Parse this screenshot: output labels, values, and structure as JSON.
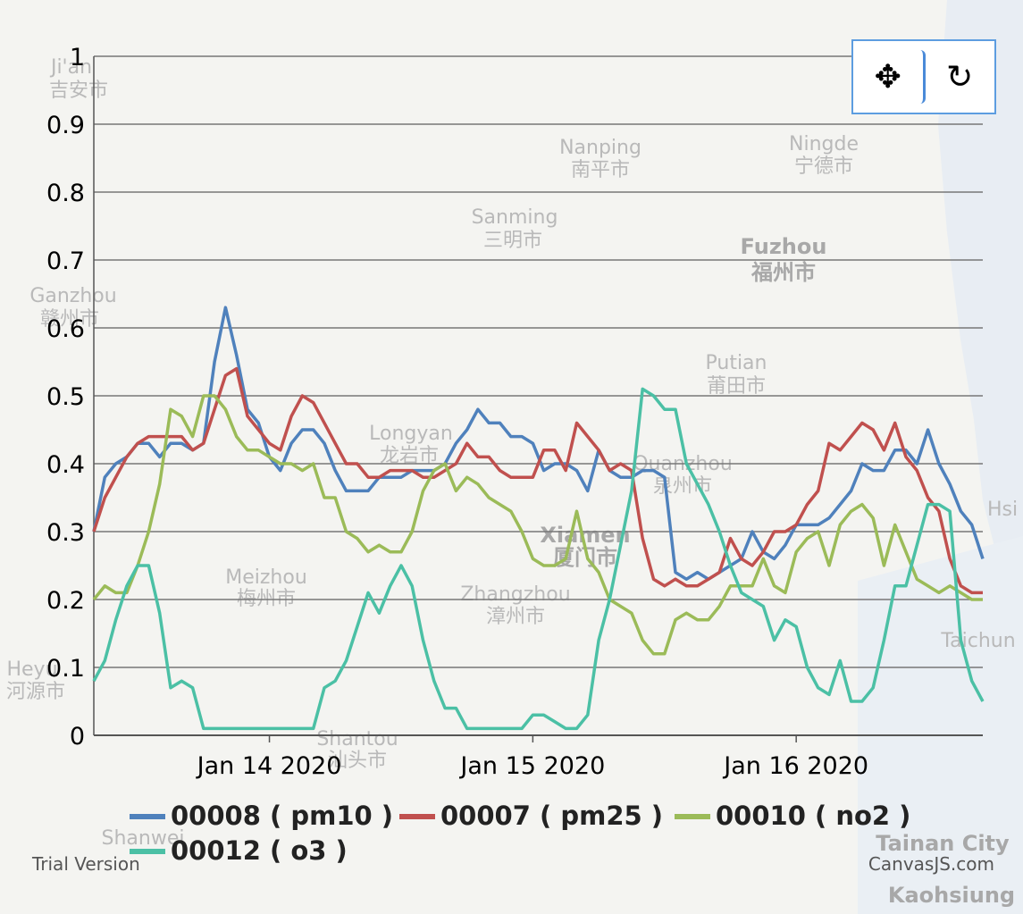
{
  "map_labels": [
    {
      "text": "Ji'an"
    },
    {
      "text": "吉安市"
    },
    {
      "text": "Nanping"
    },
    {
      "text": "南平市"
    },
    {
      "text": "Ningde"
    },
    {
      "text": "宁德市"
    },
    {
      "text": "Sanming"
    },
    {
      "text": "三明市"
    },
    {
      "text": "Fuzhou"
    },
    {
      "text": "福州市"
    },
    {
      "text": "Ganzhou"
    },
    {
      "text": "赣州市"
    },
    {
      "text": "Putian"
    },
    {
      "text": "莆田市"
    },
    {
      "text": "Longyan"
    },
    {
      "text": "龙岩市"
    },
    {
      "text": "Quanzhou"
    },
    {
      "text": "泉州市"
    },
    {
      "text": "Xiamen"
    },
    {
      "text": "厦门市"
    },
    {
      "text": "Meizhou"
    },
    {
      "text": "梅州市"
    },
    {
      "text": "Zhangzhou"
    },
    {
      "text": "漳州市"
    },
    {
      "text": "Heyu"
    },
    {
      "text": "河源市"
    },
    {
      "text": "Shantou"
    },
    {
      "text": "汕头市"
    },
    {
      "text": "Shanwei"
    },
    {
      "text": "Taichun"
    },
    {
      "text": "Hsi"
    },
    {
      "text": "Tainan City"
    },
    {
      "text": "Kaohsiung"
    }
  ],
  "toolbar": {
    "pan_icon": "move-arrows-icon",
    "reset_icon": "reset-rotate-icon",
    "pan_glyph": "✥",
    "reset_glyph": "↻"
  },
  "footer": {
    "trial": "Trial Version",
    "credit": "CanvasJS.com"
  },
  "chart_data": {
    "type": "line",
    "title": "",
    "xlabel": "",
    "ylabel": "",
    "ylim": [
      0,
      1
    ],
    "yticks": [
      "0",
      "0.1",
      "0.2",
      "0.3",
      "0.4",
      "0.5",
      "0.6",
      "0.7",
      "0.8",
      "0.9",
      "1"
    ],
    "xtick_labels": [
      {
        "label": "Jan 14 2020",
        "index": 16
      },
      {
        "label": "Jan 15 2020",
        "index": 40
      },
      {
        "label": "Jan 16 2020",
        "index": 64
      }
    ],
    "x_points": 82,
    "series": [
      {
        "name": "00008 ( pm10 )",
        "color": "#4f81bc",
        "values": [
          0.3,
          0.38,
          0.4,
          0.41,
          0.43,
          0.43,
          0.41,
          0.43,
          0.43,
          0.42,
          0.43,
          0.55,
          0.63,
          0.56,
          0.48,
          0.46,
          0.41,
          0.39,
          0.43,
          0.45,
          0.45,
          0.43,
          0.39,
          0.36,
          0.36,
          0.36,
          0.38,
          0.38,
          0.38,
          0.39,
          0.39,
          0.39,
          0.4,
          0.43,
          0.45,
          0.48,
          0.46,
          0.46,
          0.44,
          0.44,
          0.43,
          0.39,
          0.4,
          0.4,
          0.39,
          0.36,
          0.42,
          0.39,
          0.38,
          0.38,
          0.39,
          0.39,
          0.38,
          0.24,
          0.23,
          0.24,
          0.23,
          0.24,
          0.25,
          0.26,
          0.3,
          0.27,
          0.26,
          0.28,
          0.31,
          0.31,
          0.31,
          0.32,
          0.34,
          0.36,
          0.4,
          0.39,
          0.39,
          0.42,
          0.42,
          0.4,
          0.45,
          0.4,
          0.37,
          0.33,
          0.31,
          0.26
        ]
      },
      {
        "name": "00007 ( pm25 )",
        "color": "#c0504e",
        "values": [
          0.3,
          0.35,
          0.38,
          0.41,
          0.43,
          0.44,
          0.44,
          0.44,
          0.44,
          0.42,
          0.43,
          0.48,
          0.53,
          0.54,
          0.47,
          0.45,
          0.43,
          0.42,
          0.47,
          0.5,
          0.49,
          0.46,
          0.43,
          0.4,
          0.4,
          0.38,
          0.38,
          0.39,
          0.39,
          0.39,
          0.38,
          0.38,
          0.39,
          0.4,
          0.43,
          0.41,
          0.41,
          0.39,
          0.38,
          0.38,
          0.38,
          0.42,
          0.42,
          0.39,
          0.46,
          0.44,
          0.42,
          0.39,
          0.4,
          0.39,
          0.29,
          0.23,
          0.22,
          0.23,
          0.22,
          0.22,
          0.23,
          0.24,
          0.29,
          0.26,
          0.25,
          0.27,
          0.3,
          0.3,
          0.31,
          0.34,
          0.36,
          0.43,
          0.42,
          0.44,
          0.46,
          0.45,
          0.42,
          0.46,
          0.41,
          0.39,
          0.35,
          0.33,
          0.26,
          0.22,
          0.21,
          0.21
        ]
      },
      {
        "name": "00010 ( no2 )",
        "color": "#9bbb58",
        "values": [
          0.2,
          0.22,
          0.21,
          0.21,
          0.25,
          0.3,
          0.37,
          0.48,
          0.47,
          0.44,
          0.5,
          0.5,
          0.48,
          0.44,
          0.42,
          0.42,
          0.41,
          0.4,
          0.4,
          0.39,
          0.4,
          0.35,
          0.35,
          0.3,
          0.29,
          0.27,
          0.28,
          0.27,
          0.27,
          0.3,
          0.36,
          0.39,
          0.4,
          0.36,
          0.38,
          0.37,
          0.35,
          0.34,
          0.33,
          0.3,
          0.26,
          0.25,
          0.25,
          0.26,
          0.33,
          0.26,
          0.24,
          0.2,
          0.19,
          0.18,
          0.14,
          0.12,
          0.12,
          0.17,
          0.18,
          0.17,
          0.17,
          0.19,
          0.22,
          0.22,
          0.22,
          0.26,
          0.22,
          0.21,
          0.27,
          0.29,
          0.3,
          0.25,
          0.31,
          0.33,
          0.34,
          0.32,
          0.25,
          0.31,
          0.27,
          0.23,
          0.22,
          0.21,
          0.22,
          0.21,
          0.2,
          0.2
        ]
      },
      {
        "name": "00012 ( o3 )",
        "color": "#4bc0a5",
        "values": [
          0.08,
          0.11,
          0.17,
          0.22,
          0.25,
          0.25,
          0.18,
          0.07,
          0.08,
          0.07,
          0.01,
          0.01,
          0.01,
          0.01,
          0.01,
          0.01,
          0.01,
          0.01,
          0.01,
          0.01,
          0.01,
          0.07,
          0.08,
          0.11,
          0.16,
          0.21,
          0.18,
          0.22,
          0.25,
          0.22,
          0.14,
          0.08,
          0.04,
          0.04,
          0.01,
          0.01,
          0.01,
          0.01,
          0.01,
          0.01,
          0.03,
          0.03,
          0.02,
          0.01,
          0.01,
          0.03,
          0.14,
          0.2,
          0.28,
          0.36,
          0.51,
          0.5,
          0.48,
          0.48,
          0.4,
          0.37,
          0.34,
          0.3,
          0.25,
          0.21,
          0.2,
          0.19,
          0.14,
          0.17,
          0.16,
          0.1,
          0.07,
          0.06,
          0.11,
          0.05,
          0.05,
          0.07,
          0.14,
          0.22,
          0.22,
          0.28,
          0.34,
          0.34,
          0.33,
          0.14,
          0.08,
          0.05
        ]
      }
    ]
  }
}
